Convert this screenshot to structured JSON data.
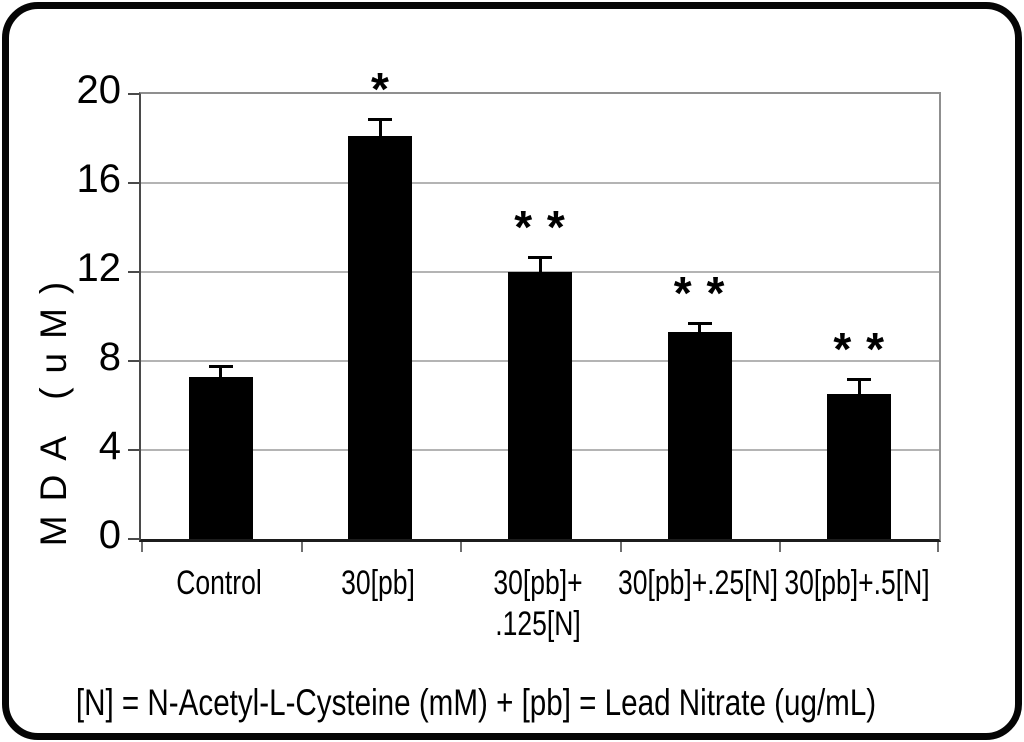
{
  "chart_data": {
    "type": "bar",
    "title": "",
    "ylabel": "MDA (uM)",
    "xlabel": "",
    "ylim": [
      0,
      20
    ],
    "yticks": [
      0,
      4,
      8,
      12,
      16,
      20
    ],
    "grid": true,
    "legend_position": "none",
    "bar_color": "#000000",
    "gridline_color": "#b4b4b4",
    "categories": [
      "Control",
      "30[pb]",
      "30[pb]+ .125[N]",
      "30[pb]+.25[N]",
      "30[pb]+.5[N]"
    ],
    "category_label_lines": [
      [
        "Control"
      ],
      [
        "30[pb]"
      ],
      [
        "30[pb]+",
        ".125[N]"
      ],
      [
        "30[pb]+.25[N]"
      ],
      [
        "30[pb]+.5[N]"
      ]
    ],
    "values": [
      7.3,
      18.1,
      12.0,
      9.3,
      6.5
    ],
    "error_upper": [
      0.5,
      0.8,
      0.7,
      0.45,
      0.75
    ],
    "significance": [
      "",
      "*",
      "* *",
      "* *",
      "* *"
    ]
  },
  "caption": "[N] = N-Acetyl-L-Cysteine (mM) + [pb] = Lead Nitrate (ug/mL)"
}
